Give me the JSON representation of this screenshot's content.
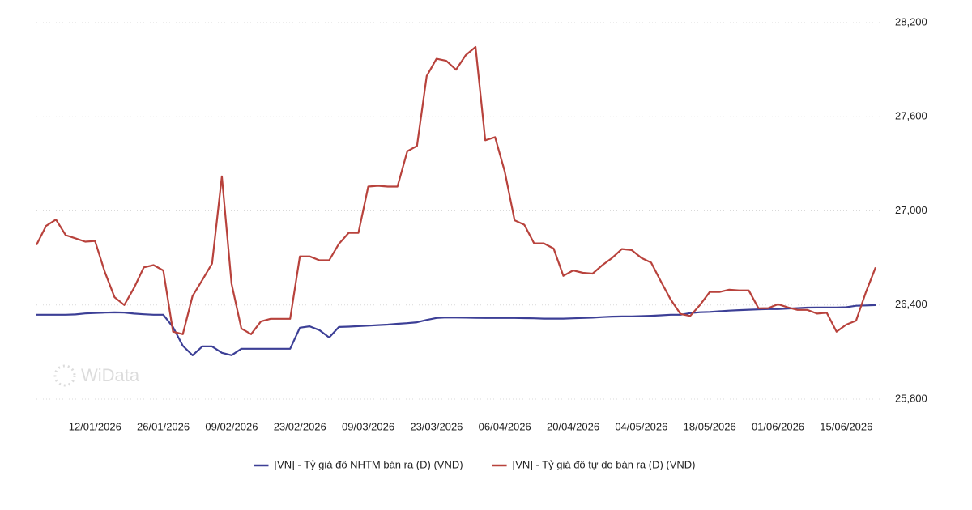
{
  "chart_data": {
    "type": "line",
    "watermark": "WiData",
    "x": [
      "2025-12-31",
      "2026-01-02",
      "2026-01-04",
      "2026-01-06",
      "2026-01-08",
      "2026-01-10",
      "2026-01-12",
      "2026-01-14",
      "2026-01-16",
      "2026-01-18",
      "2026-01-20",
      "2026-01-22",
      "2026-01-24",
      "2026-01-26",
      "2026-01-28",
      "2026-01-30",
      "2026-02-01",
      "2026-02-03",
      "2026-02-05",
      "2026-02-07",
      "2026-02-09",
      "2026-02-11",
      "2026-02-13",
      "2026-02-15",
      "2026-02-17",
      "2026-02-19",
      "2026-02-21",
      "2026-02-23",
      "2026-02-25",
      "2026-02-27",
      "2026-03-01",
      "2026-03-03",
      "2026-03-05",
      "2026-03-07",
      "2026-03-09",
      "2026-03-11",
      "2026-03-13",
      "2026-03-15",
      "2026-03-17",
      "2026-03-19",
      "2026-03-21",
      "2026-03-23",
      "2026-03-25",
      "2026-03-27",
      "2026-03-29",
      "2026-03-31",
      "2026-04-02",
      "2026-04-04",
      "2026-04-06",
      "2026-04-08",
      "2026-04-10",
      "2026-04-12",
      "2026-04-14",
      "2026-04-16",
      "2026-04-18",
      "2026-04-20",
      "2026-04-22",
      "2026-04-24",
      "2026-04-26",
      "2026-04-28",
      "2026-04-30",
      "2026-05-02",
      "2026-05-04",
      "2026-05-06",
      "2026-05-08",
      "2026-05-10",
      "2026-05-12",
      "2026-05-14",
      "2026-05-16",
      "2026-05-18",
      "2026-05-20",
      "2026-05-22",
      "2026-05-24",
      "2026-05-26",
      "2026-05-28",
      "2026-05-30",
      "2026-06-01",
      "2026-06-03",
      "2026-06-05",
      "2026-06-07",
      "2026-06-09",
      "2026-06-11",
      "2026-06-13",
      "2026-06-15",
      "2026-06-17",
      "2026-06-19",
      "2026-06-21"
    ],
    "series": [
      {
        "name": "[VN] - Tỷ giá đô NHTM bán ra (D) (VND)",
        "color": "#3c3f96",
        "values": [
          26338,
          26338,
          26338,
          26338,
          26340,
          26346,
          26349,
          26351,
          26353,
          26352,
          26345,
          26341,
          26338,
          26338,
          26259,
          26140,
          26079,
          26136,
          26136,
          26095,
          26080,
          26121,
          26121,
          26121,
          26121,
          26121,
          26121,
          26255,
          26264,
          26240,
          26193,
          26260,
          26262,
          26265,
          26268,
          26272,
          26275,
          26280,
          26284,
          26290,
          26305,
          26317,
          26321,
          26320,
          26319,
          26318,
          26317,
          26317,
          26317,
          26317,
          26316,
          26315,
          26313,
          26313,
          26313,
          26315,
          26317,
          26319,
          26323,
          26326,
          26327,
          26327,
          26329,
          26331,
          26334,
          26338,
          26338,
          26348,
          26354,
          26356,
          26360,
          26364,
          26367,
          26370,
          26372,
          26374,
          26374,
          26377,
          26380,
          26383,
          26384,
          26384,
          26384,
          26386,
          26395,
          26397,
          26399
        ]
      },
      {
        "name": "[VN] - Tỷ giá đô tự do bán ra (D) (VND)",
        "color": "#b8423c",
        "values": [
          26783,
          26905,
          26945,
          26845,
          26825,
          26804,
          26808,
          26612,
          26450,
          26400,
          26509,
          26640,
          26654,
          26620,
          26230,
          26214,
          26457,
          26560,
          26664,
          27220,
          26535,
          26250,
          26214,
          26295,
          26312,
          26312,
          26312,
          26710,
          26710,
          26685,
          26685,
          26790,
          26860,
          26860,
          27155,
          27160,
          27155,
          27155,
          27380,
          27414,
          27860,
          27970,
          27957,
          27900,
          27993,
          28045,
          27450,
          27470,
          27250,
          26940,
          26912,
          26793,
          26793,
          26760,
          26586,
          26620,
          26605,
          26600,
          26654,
          26700,
          26757,
          26750,
          26700,
          26670,
          26550,
          26435,
          26343,
          26330,
          26400,
          26483,
          26483,
          26498,
          26493,
          26493,
          26379,
          26380,
          26405,
          26385,
          26369,
          26369,
          26345,
          26350,
          26230,
          26275,
          26300,
          26480,
          26640
        ]
      }
    ],
    "xlim": [
      "2025-12-31",
      "2026-06-22"
    ],
    "xticks": [
      {
        "value": "2026-01-12",
        "label": "12/01/2026"
      },
      {
        "value": "2026-01-26",
        "label": "26/01/2026"
      },
      {
        "value": "2026-02-09",
        "label": "09/02/2026"
      },
      {
        "value": "2026-02-23",
        "label": "23/02/2026"
      },
      {
        "value": "2026-03-09",
        "label": "09/03/2026"
      },
      {
        "value": "2026-03-23",
        "label": "23/03/2026"
      },
      {
        "value": "2026-04-06",
        "label": "06/04/2026"
      },
      {
        "value": "2026-04-20",
        "label": "20/04/2026"
      },
      {
        "value": "2026-05-04",
        "label": "04/05/2026"
      },
      {
        "value": "2026-05-18",
        "label": "18/05/2026"
      },
      {
        "value": "2026-06-01",
        "label": "01/06/2026"
      },
      {
        "value": "2026-06-15",
        "label": "15/06/2026"
      }
    ],
    "ylim": [
      25800,
      28200
    ],
    "yticks": [
      {
        "value": 25800,
        "label": "25,800"
      },
      {
        "value": 26400,
        "label": "26,400"
      },
      {
        "value": 27000,
        "label": "27,000"
      },
      {
        "value": 27600,
        "label": "27,600"
      },
      {
        "value": 28200,
        "label": "28,200"
      }
    ],
    "grid": true,
    "legend": "bottom"
  }
}
